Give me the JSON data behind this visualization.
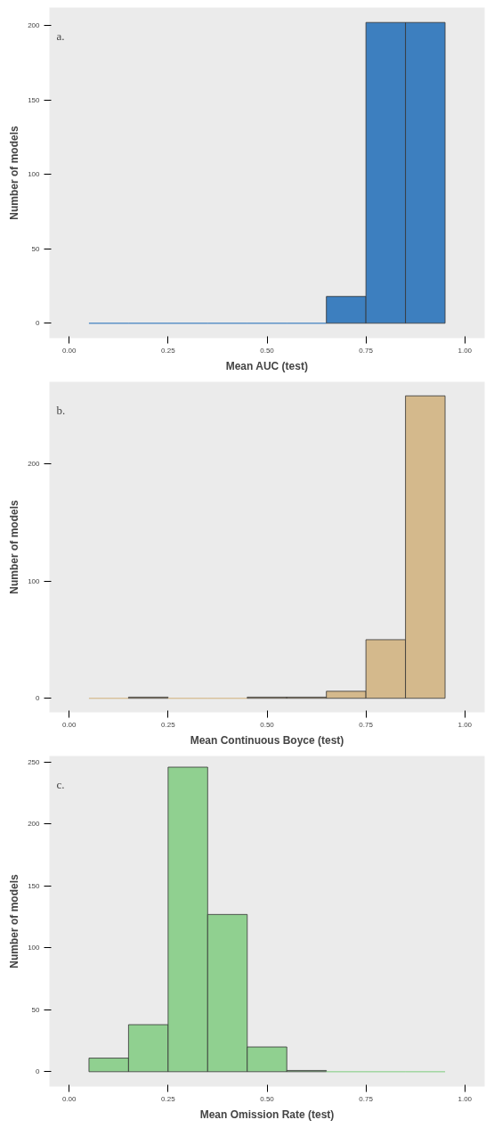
{
  "chart_data": [
    {
      "type": "histogram",
      "annotations": [
        "a."
      ],
      "xlabel": "Mean AUC (test)",
      "ylabel": "Number of models",
      "bins": [
        0.05,
        0.15,
        0.25,
        0.35,
        0.45,
        0.55,
        0.65,
        0.75,
        0.85,
        0.95
      ],
      "values": [
        0,
        0,
        0,
        0,
        0,
        0,
        18,
        202,
        202
      ],
      "color": "#3d7fbf",
      "xlim": [
        -0.05,
        1.05
      ],
      "ylim": [
        -10,
        212
      ],
      "xticks": [
        {
          "value": 0,
          "label": "0.00"
        },
        {
          "value": 0.25,
          "label": "0.25"
        },
        {
          "value": 0.5,
          "label": "0.50"
        },
        {
          "value": 0.75,
          "label": "0.75"
        },
        {
          "value": 1,
          "label": "1.00"
        }
      ],
      "yticks": [
        0,
        50,
        100,
        150,
        200
      ],
      "grid": false
    },
    {
      "type": "histogram",
      "annotations": [
        "b."
      ],
      "xlabel": "Mean Continuous Boyce (test)",
      "ylabel": "Number of models",
      "bins": [
        0.05,
        0.15,
        0.25,
        0.35,
        0.45,
        0.55,
        0.65,
        0.75,
        0.85,
        0.95
      ],
      "values": [
        0,
        1,
        0,
        0,
        1,
        1,
        6,
        50,
        258
      ],
      "color": "#d4b98c",
      "xlim": [
        -0.05,
        1.05
      ],
      "ylim": [
        -12,
        270
      ],
      "xticks": [
        {
          "value": 0,
          "label": "0.00"
        },
        {
          "value": 0.25,
          "label": "0.25"
        },
        {
          "value": 0.5,
          "label": "0.50"
        },
        {
          "value": 0.75,
          "label": "0.75"
        },
        {
          "value": 1,
          "label": "1.00"
        }
      ],
      "yticks": [
        0,
        100,
        200
      ],
      "grid": false
    },
    {
      "type": "histogram",
      "annotations": [
        "c."
      ],
      "xlabel": "Mean Omission Rate (test)",
      "ylabel": "Number of models",
      "bins": [
        0.05,
        0.15,
        0.25,
        0.35,
        0.45,
        0.55,
        0.65,
        0.75,
        0.85,
        0.95
      ],
      "values": [
        11,
        38,
        246,
        127,
        20,
        1,
        0,
        0,
        0
      ],
      "color": "#90d090",
      "xlim": [
        -0.05,
        1.05
      ],
      "ylim": [
        -12,
        255
      ],
      "xticks": [
        {
          "value": 0,
          "label": "0.00"
        },
        {
          "value": 0.25,
          "label": "0.25"
        },
        {
          "value": 0.5,
          "label": "0.50"
        },
        {
          "value": 0.75,
          "label": "0.75"
        },
        {
          "value": 1,
          "label": "1.00"
        }
      ],
      "yticks": [
        0,
        50,
        100,
        150,
        200,
        250
      ],
      "grid": false
    }
  ]
}
